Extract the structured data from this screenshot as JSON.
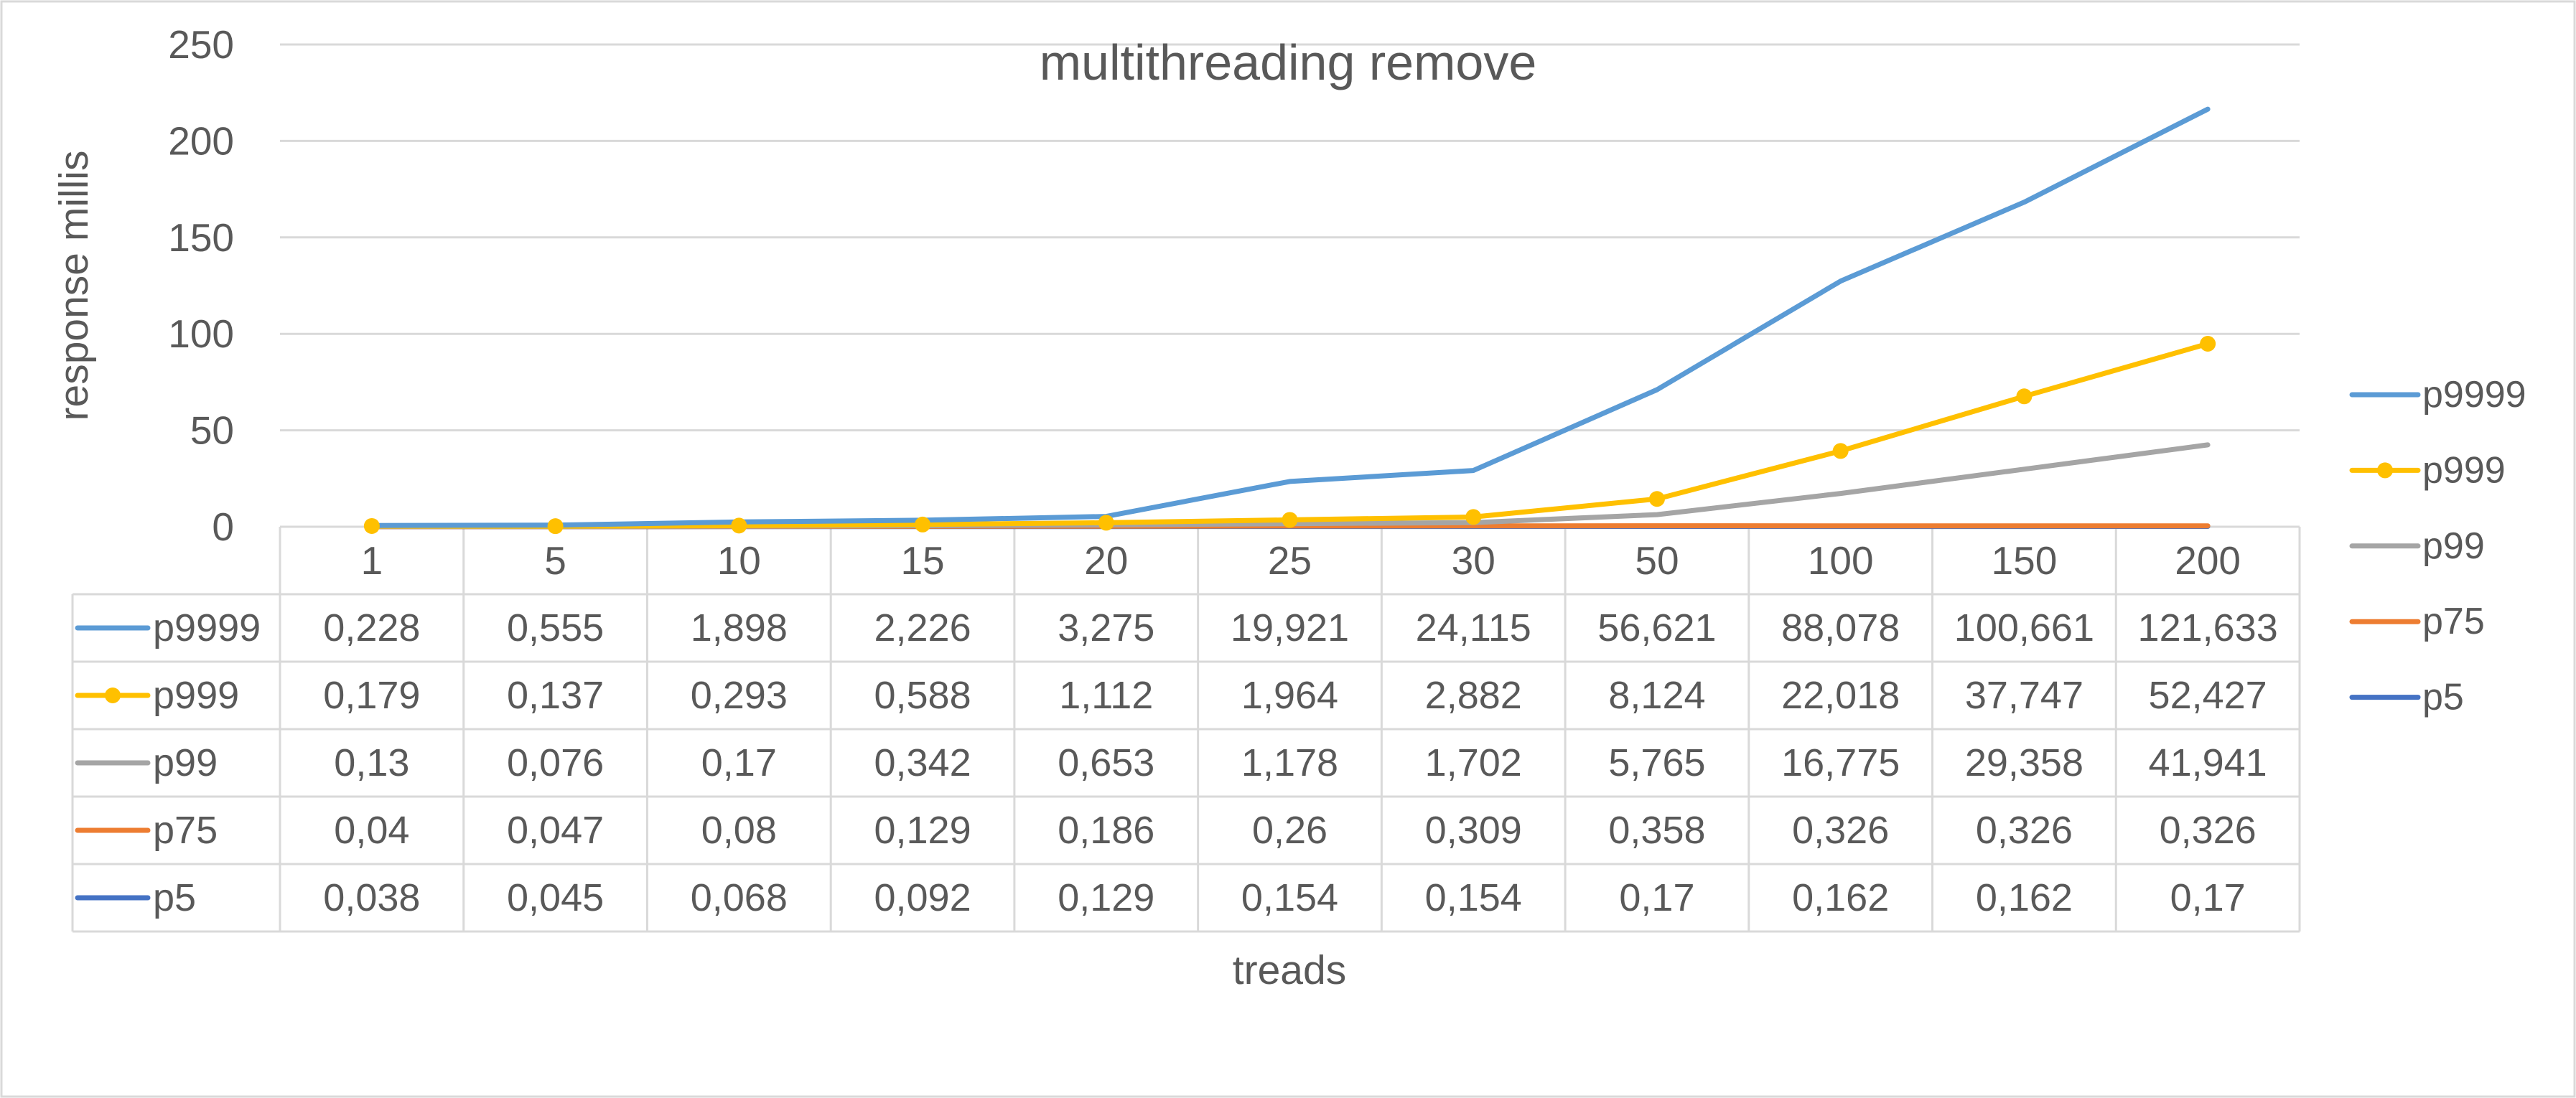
{
  "chart_data": {
    "type": "line",
    "stacked": true,
    "title": "multithreading remove",
    "xlabel": "treads",
    "ylabel": "response millis",
    "categories": [
      "1",
      "5",
      "10",
      "15",
      "20",
      "25",
      "30",
      "50",
      "100",
      "150",
      "200"
    ],
    "ylim": [
      0,
      250
    ],
    "yticks": [
      0,
      50,
      100,
      150,
      200,
      250
    ],
    "grid": true,
    "legend": "right",
    "data_table": true,
    "series": [
      {
        "name": "p9999",
        "color": "#5B9BD5",
        "markers": false,
        "values": [
          0.228,
          0.555,
          1.898,
          2.226,
          3.275,
          19.921,
          24.115,
          56.621,
          88.078,
          100.661,
          121.633
        ],
        "table_values": [
          "0,228",
          "0,555",
          "1,898",
          "2,226",
          "3,275",
          "19,921",
          "24,115",
          "56,621",
          "88,078",
          "100,661",
          "121,633"
        ]
      },
      {
        "name": "p999",
        "color": "#FFC000",
        "markers": true,
        "values": [
          0.179,
          0.137,
          0.293,
          0.588,
          1.112,
          1.964,
          2.882,
          8.124,
          22.018,
          37.747,
          52.427
        ],
        "table_values": [
          "0,179",
          "0,137",
          "0,293",
          "0,588",
          "1,112",
          "1,964",
          "2,882",
          "8,124",
          "22,018",
          "37,747",
          "52,427"
        ]
      },
      {
        "name": "p99",
        "color": "#A5A5A5",
        "markers": false,
        "values": [
          0.13,
          0.076,
          0.17,
          0.342,
          0.653,
          1.178,
          1.702,
          5.765,
          16.775,
          29.358,
          41.941
        ],
        "table_values": [
          "0,13",
          "0,076",
          "0,17",
          "0,342",
          "0,653",
          "1,178",
          "1,702",
          "5,765",
          "16,775",
          "29,358",
          "41,941"
        ]
      },
      {
        "name": "p75",
        "color": "#ED7D31",
        "markers": false,
        "values": [
          0.04,
          0.047,
          0.08,
          0.129,
          0.186,
          0.26,
          0.309,
          0.358,
          0.326,
          0.326,
          0.326
        ],
        "table_values": [
          "0,04",
          "0,047",
          "0,08",
          "0,129",
          "0,186",
          "0,26",
          "0,309",
          "0,358",
          "0,326",
          "0,326",
          "0,326"
        ]
      },
      {
        "name": "p5",
        "color": "#4472C4",
        "markers": false,
        "values": [
          0.038,
          0.045,
          0.068,
          0.092,
          0.129,
          0.154,
          0.154,
          0.17,
          0.162,
          0.162,
          0.17
        ],
        "table_values": [
          "0,038",
          "0,045",
          "0,068",
          "0,092",
          "0,129",
          "0,154",
          "0,154",
          "0,17",
          "0,162",
          "0,162",
          "0,17"
        ]
      }
    ]
  }
}
